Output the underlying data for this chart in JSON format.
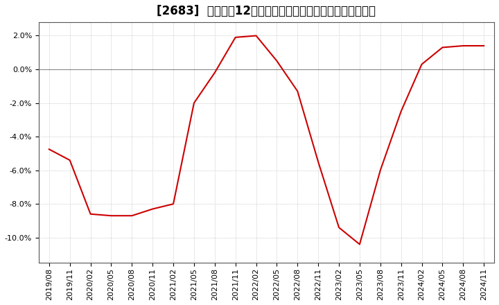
{
  "title": "[2683]  売上高の12か月移動合計の対前年同期増減率の推移",
  "line_color": "#cc0000",
  "background_color": "#ffffff",
  "plot_bg_color": "#ffffff",
  "grid_color": "#aaaaaa",
  "zero_line_color": "#888888",
  "dates": [
    "2019/08",
    "2019/11",
    "2020/02",
    "2020/05",
    "2020/08",
    "2020/11",
    "2021/02",
    "2021/05",
    "2021/08",
    "2021/11",
    "2022/02",
    "2022/05",
    "2022/08",
    "2022/11",
    "2023/02",
    "2023/05",
    "2023/08",
    "2023/11",
    "2024/02",
    "2024/05",
    "2024/08",
    "2024/11"
  ],
  "values": [
    -0.0475,
    -0.054,
    -0.086,
    -0.087,
    -0.087,
    -0.083,
    -0.08,
    -0.02,
    -0.002,
    0.019,
    0.02,
    0.005,
    -0.013,
    -0.055,
    -0.094,
    -0.104,
    -0.06,
    -0.025,
    0.003,
    0.013,
    0.014,
    0.014
  ],
  "ylim": [
    -0.115,
    0.028
  ],
  "yticks": [
    0.02,
    0.0,
    -0.02,
    -0.04,
    -0.06,
    -0.08,
    -0.1
  ],
  "figsize": [
    7.2,
    4.4
  ],
  "dpi": 100,
  "title_fontsize": 12,
  "tick_fontsize": 8,
  "line_width": 1.5
}
